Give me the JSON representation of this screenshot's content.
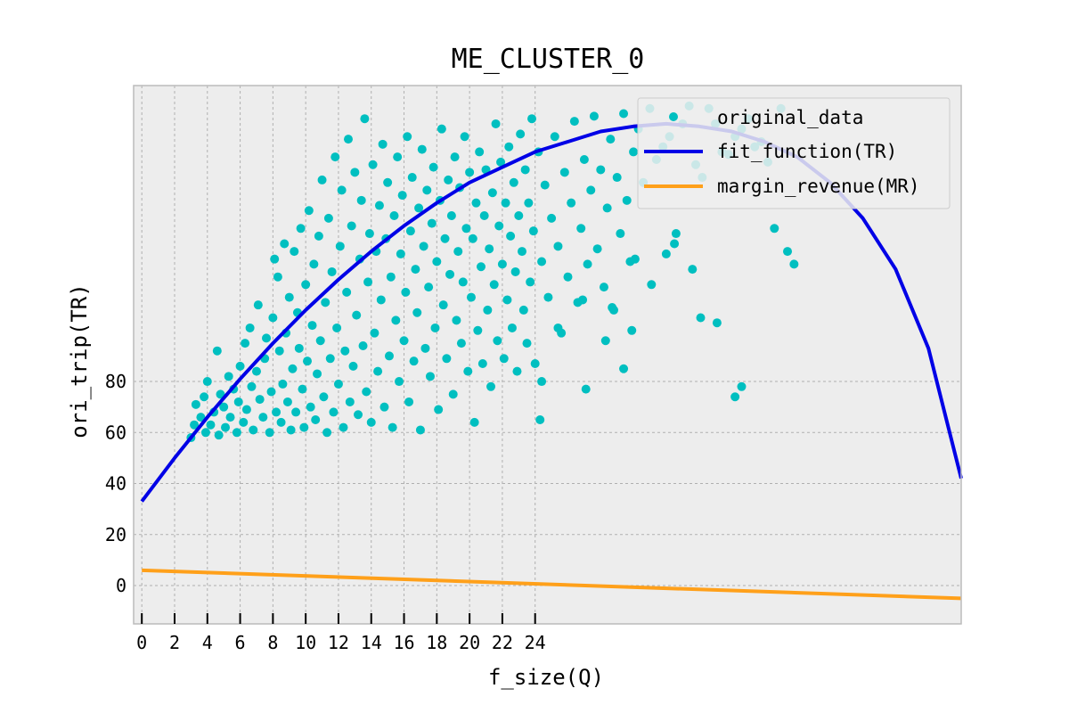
{
  "chart_data": {
    "type": "scatter",
    "title": "ME_CLUSTER_0",
    "xlabel": "f_size(Q)",
    "ylabel": "ori_trip(TR)",
    "xlim": [
      -0.5,
      50.0
    ],
    "ylim": [
      -15,
      196
    ],
    "x_ticks": [
      0,
      2,
      4,
      6,
      8,
      10,
      12,
      14,
      16,
      18,
      20,
      22,
      24
    ],
    "x_tick_labels": [
      "0",
      "2",
      "4",
      "6",
      "8",
      "10",
      "12",
      "14",
      "16",
      "18",
      "20",
      "22",
      "24"
    ],
    "y_ticks": [
      0,
      20,
      40,
      60,
      80
    ],
    "y_tick_labels": [
      "0",
      "20",
      "40",
      "60",
      "80"
    ],
    "grid": true,
    "legend_position": "top-right",
    "colors": {
      "background": "#ededed",
      "scatter": "#00bfc0",
      "fit": "#0000e6",
      "mr": "#ffa01a",
      "grid": "#b0b0b0",
      "frame": "#bcbcbc"
    },
    "series": [
      {
        "name": "original_data",
        "kind": "scatter",
        "points": [
          [
            3,
            58
          ],
          [
            3.2,
            63
          ],
          [
            3.3,
            71
          ],
          [
            3.6,
            66
          ],
          [
            3.8,
            74
          ],
          [
            3.9,
            60
          ],
          [
            4.0,
            80
          ],
          [
            4.2,
            63
          ],
          [
            4.4,
            68
          ],
          [
            4.6,
            92
          ],
          [
            4.8,
            75
          ],
          [
            4.7,
            59
          ],
          [
            5.0,
            70
          ],
          [
            5.1,
            62
          ],
          [
            5.3,
            82
          ],
          [
            5.4,
            66
          ],
          [
            5.6,
            77
          ],
          [
            5.8,
            60
          ],
          [
            5.9,
            72
          ],
          [
            6.0,
            86
          ],
          [
            6.2,
            64
          ],
          [
            6.3,
            95
          ],
          [
            6.4,
            69
          ],
          [
            6.6,
            101
          ],
          [
            6.7,
            78
          ],
          [
            6.8,
            61
          ],
          [
            7.0,
            84
          ],
          [
            7.1,
            110
          ],
          [
            7.2,
            73
          ],
          [
            7.4,
            66
          ],
          [
            7.5,
            89
          ],
          [
            7.6,
            97
          ],
          [
            7.8,
            60
          ],
          [
            7.9,
            76
          ],
          [
            8.0,
            105
          ],
          [
            8.1,
            128
          ],
          [
            8.2,
            68
          ],
          [
            8.3,
            121
          ],
          [
            8.4,
            92
          ],
          [
            8.5,
            64
          ],
          [
            8.6,
            79
          ],
          [
            8.7,
            134
          ],
          [
            8.8,
            99
          ],
          [
            8.9,
            72
          ],
          [
            9.0,
            113
          ],
          [
            9.1,
            61
          ],
          [
            9.2,
            85
          ],
          [
            9.3,
            131
          ],
          [
            9.4,
            68
          ],
          [
            9.5,
            107
          ],
          [
            9.6,
            93
          ],
          [
            9.7,
            140
          ],
          [
            9.8,
            77
          ],
          [
            9.9,
            62
          ],
          [
            10.0,
            118
          ],
          [
            10.1,
            88
          ],
          [
            10.2,
            147
          ],
          [
            10.3,
            70
          ],
          [
            10.4,
            102
          ],
          [
            10.5,
            126
          ],
          [
            10.6,
            65
          ],
          [
            10.7,
            83
          ],
          [
            10.8,
            137
          ],
          [
            10.9,
            96
          ],
          [
            11.0,
            159
          ],
          [
            11.1,
            74
          ],
          [
            11.2,
            111
          ],
          [
            11.3,
            60
          ],
          [
            11.4,
            144
          ],
          [
            11.5,
            89
          ],
          [
            11.6,
            123
          ],
          [
            11.7,
            68
          ],
          [
            11.8,
            168
          ],
          [
            11.9,
            101
          ],
          [
            12.0,
            79
          ],
          [
            12.1,
            133
          ],
          [
            12.2,
            155
          ],
          [
            12.3,
            62
          ],
          [
            12.4,
            92
          ],
          [
            12.5,
            115
          ],
          [
            12.6,
            175
          ],
          [
            12.7,
            72
          ],
          [
            12.8,
            141
          ],
          [
            12.9,
            86
          ],
          [
            13.0,
            162
          ],
          [
            13.1,
            106
          ],
          [
            13.2,
            67
          ],
          [
            13.3,
            128
          ],
          [
            13.4,
            151
          ],
          [
            13.5,
            94
          ],
          [
            13.6,
            183
          ],
          [
            13.7,
            76
          ],
          [
            13.8,
            119
          ],
          [
            13.9,
            138
          ],
          [
            14.0,
            64
          ],
          [
            14.1,
            165
          ],
          [
            14.2,
            99
          ],
          [
            14.3,
            131
          ],
          [
            14.4,
            84
          ],
          [
            14.5,
            149
          ],
          [
            14.6,
            112
          ],
          [
            14.7,
            173
          ],
          [
            14.8,
            70
          ],
          [
            14.9,
            136
          ],
          [
            15.0,
            158
          ],
          [
            15.1,
            90
          ],
          [
            15.2,
            121
          ],
          [
            15.3,
            62
          ],
          [
            15.4,
            145
          ],
          [
            15.5,
            104
          ],
          [
            15.6,
            168
          ],
          [
            15.7,
            80
          ],
          [
            15.8,
            130
          ],
          [
            15.9,
            153
          ],
          [
            16.0,
            96
          ],
          [
            16.1,
            115
          ],
          [
            16.2,
            176
          ],
          [
            16.3,
            72
          ],
          [
            16.4,
            139
          ],
          [
            16.5,
            160
          ],
          [
            16.6,
            88
          ],
          [
            16.7,
            124
          ],
          [
            16.8,
            107
          ],
          [
            16.9,
            148
          ],
          [
            17.0,
            61
          ],
          [
            17.1,
            171
          ],
          [
            17.2,
            133
          ],
          [
            17.3,
            93
          ],
          [
            17.4,
            155
          ],
          [
            17.5,
            117
          ],
          [
            17.6,
            82
          ],
          [
            17.7,
            142
          ],
          [
            17.8,
            164
          ],
          [
            17.9,
            101
          ],
          [
            18.0,
            127
          ],
          [
            18.1,
            69
          ],
          [
            18.2,
            151
          ],
          [
            18.3,
            179
          ],
          [
            18.4,
            110
          ],
          [
            18.5,
            136
          ],
          [
            18.6,
            89
          ],
          [
            18.7,
            159
          ],
          [
            18.8,
            122
          ],
          [
            18.9,
            145
          ],
          [
            19.0,
            75
          ],
          [
            19.1,
            168
          ],
          [
            19.2,
            104
          ],
          [
            19.3,
            131
          ],
          [
            19.4,
            156
          ],
          [
            19.5,
            95
          ],
          [
            19.6,
            119
          ],
          [
            19.7,
            176
          ],
          [
            19.8,
            140
          ],
          [
            19.9,
            84
          ],
          [
            20.0,
            162
          ],
          [
            20.1,
            113
          ],
          [
            20.2,
            136
          ],
          [
            20.3,
            64
          ],
          [
            20.4,
            150
          ],
          [
            20.5,
            100
          ],
          [
            20.6,
            170
          ],
          [
            20.7,
            125
          ],
          [
            20.8,
            87
          ],
          [
            20.9,
            145
          ],
          [
            21.0,
            163
          ],
          [
            21.1,
            108
          ],
          [
            21.2,
            132
          ],
          [
            21.3,
            78
          ],
          [
            21.4,
            154
          ],
          [
            21.5,
            118
          ],
          [
            21.6,
            181
          ],
          [
            21.7,
            96
          ],
          [
            21.8,
            141
          ],
          [
            21.9,
            166
          ],
          [
            22.0,
            126
          ],
          [
            22.1,
            89
          ],
          [
            22.2,
            150
          ],
          [
            22.3,
            112
          ],
          [
            22.4,
            172
          ],
          [
            22.5,
            137
          ],
          [
            22.6,
            101
          ],
          [
            22.7,
            158
          ],
          [
            22.8,
            123
          ],
          [
            22.9,
            84
          ],
          [
            23.0,
            145
          ],
          [
            23.1,
            177
          ],
          [
            23.2,
            131
          ],
          [
            23.3,
            108
          ],
          [
            23.4,
            163
          ],
          [
            23.5,
            95
          ],
          [
            23.6,
            150
          ],
          [
            23.7,
            119
          ],
          [
            23.8,
            183
          ],
          [
            23.9,
            139
          ],
          [
            24.0,
            87
          ],
          [
            24.2,
            170
          ],
          [
            24.4,
            127
          ],
          [
            24.6,
            157
          ],
          [
            24.8,
            113
          ],
          [
            25.0,
            144
          ],
          [
            25.2,
            176
          ],
          [
            25.4,
            133
          ],
          [
            25.6,
            99
          ],
          [
            25.8,
            162
          ],
          [
            26.0,
            121
          ],
          [
            26.2,
            150
          ],
          [
            26.4,
            182
          ],
          [
            26.6,
            111
          ],
          [
            26.8,
            140
          ],
          [
            27.0,
            167
          ],
          [
            27.2,
            126
          ],
          [
            27.4,
            155
          ],
          [
            27.6,
            184
          ],
          [
            27.8,
            132
          ],
          [
            28.0,
            163
          ],
          [
            28.2,
            117
          ],
          [
            28.4,
            148
          ],
          [
            28.6,
            175
          ],
          [
            28.8,
            108
          ],
          [
            29.0,
            160
          ],
          [
            29.2,
            138
          ],
          [
            29.4,
            185
          ],
          [
            29.6,
            151
          ],
          [
            29.8,
            127
          ],
          [
            30.0,
            170
          ],
          [
            30.3,
            179
          ],
          [
            30.6,
            158
          ],
          [
            31.0,
            187
          ],
          [
            31.4,
            167
          ],
          [
            31.8,
            172
          ],
          [
            32.2,
            176
          ],
          [
            32.6,
            138
          ],
          [
            33.0,
            181
          ],
          [
            33.4,
            188
          ],
          [
            33.8,
            165
          ],
          [
            34.2,
            160
          ],
          [
            34.6,
            187
          ],
          [
            35.0,
            181
          ],
          [
            35.4,
            170
          ],
          [
            35.8,
            169
          ],
          [
            36.2,
            176
          ],
          [
            36.6,
            179
          ],
          [
            37.0,
            183
          ],
          [
            37.4,
            172
          ],
          [
            37.8,
            174
          ],
          [
            38.2,
            166
          ],
          [
            38.6,
            140
          ],
          [
            39.0,
            187
          ],
          [
            39.4,
            131
          ],
          [
            33.6,
            124
          ],
          [
            35.1,
            103
          ],
          [
            24.4,
            80
          ],
          [
            27.1,
            77
          ],
          [
            29.4,
            85
          ],
          [
            25.4,
            101
          ],
          [
            28.3,
            96
          ],
          [
            31.1,
            118
          ],
          [
            34.1,
            105
          ],
          [
            26.9,
            112
          ],
          [
            30.1,
            128
          ],
          [
            32.0,
            130
          ],
          [
            28.7,
            109
          ],
          [
            24.3,
            65
          ],
          [
            32.5,
            134
          ],
          [
            29.9,
            100
          ],
          [
            36.2,
            74
          ],
          [
            36.6,
            78
          ],
          [
            39.8,
            126
          ]
        ]
      },
      {
        "name": "fit_function(TR)",
        "kind": "line",
        "x": [
          0,
          2,
          4,
          6,
          8,
          10,
          12,
          14,
          16,
          18,
          20,
          22,
          24,
          26,
          28,
          30,
          32,
          34,
          36,
          38,
          40,
          42,
          44,
          46,
          48,
          50
        ],
        "y": [
          33,
          50,
          66,
          81,
          95,
          108,
          120,
          131,
          141,
          150,
          158,
          164,
          170,
          174,
          178,
          180,
          181,
          180,
          178,
          174,
          168,
          158,
          144,
          124,
          93,
          42
        ]
      },
      {
        "name": "margin_revenue(MR)",
        "kind": "line",
        "x": [
          0,
          50
        ],
        "y": [
          6,
          -5
        ]
      }
    ]
  }
}
